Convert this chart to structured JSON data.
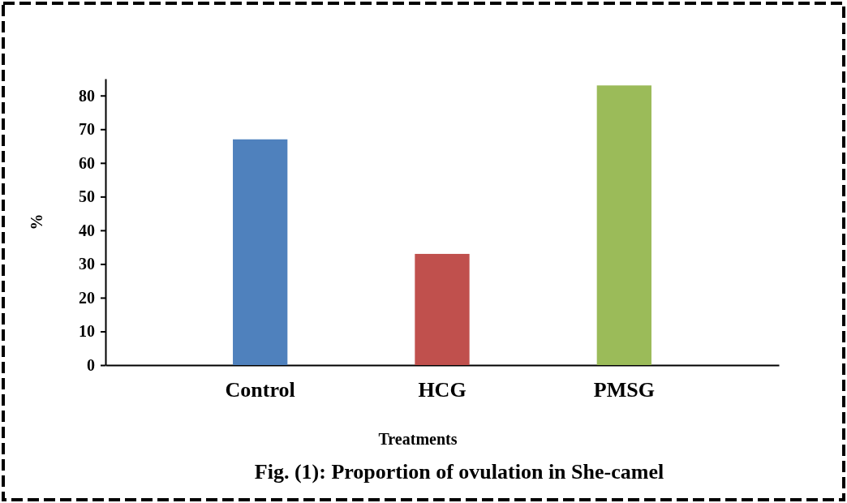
{
  "chart_data": {
    "type": "bar",
    "title": "Fig.  (1): Proportion of ovulation in She-camel",
    "xlabel": "Treatments",
    "ylabel": "%",
    "categories": [
      "Control",
      "HCG",
      "PMSG"
    ],
    "values": [
      67,
      33,
      83
    ],
    "colors": [
      "#4f81bd",
      "#c0504d",
      "#9bbb59"
    ],
    "ylim": [
      0,
      85
    ],
    "yticks": [
      0,
      10,
      20,
      30,
      40,
      50,
      60,
      70,
      80
    ]
  }
}
